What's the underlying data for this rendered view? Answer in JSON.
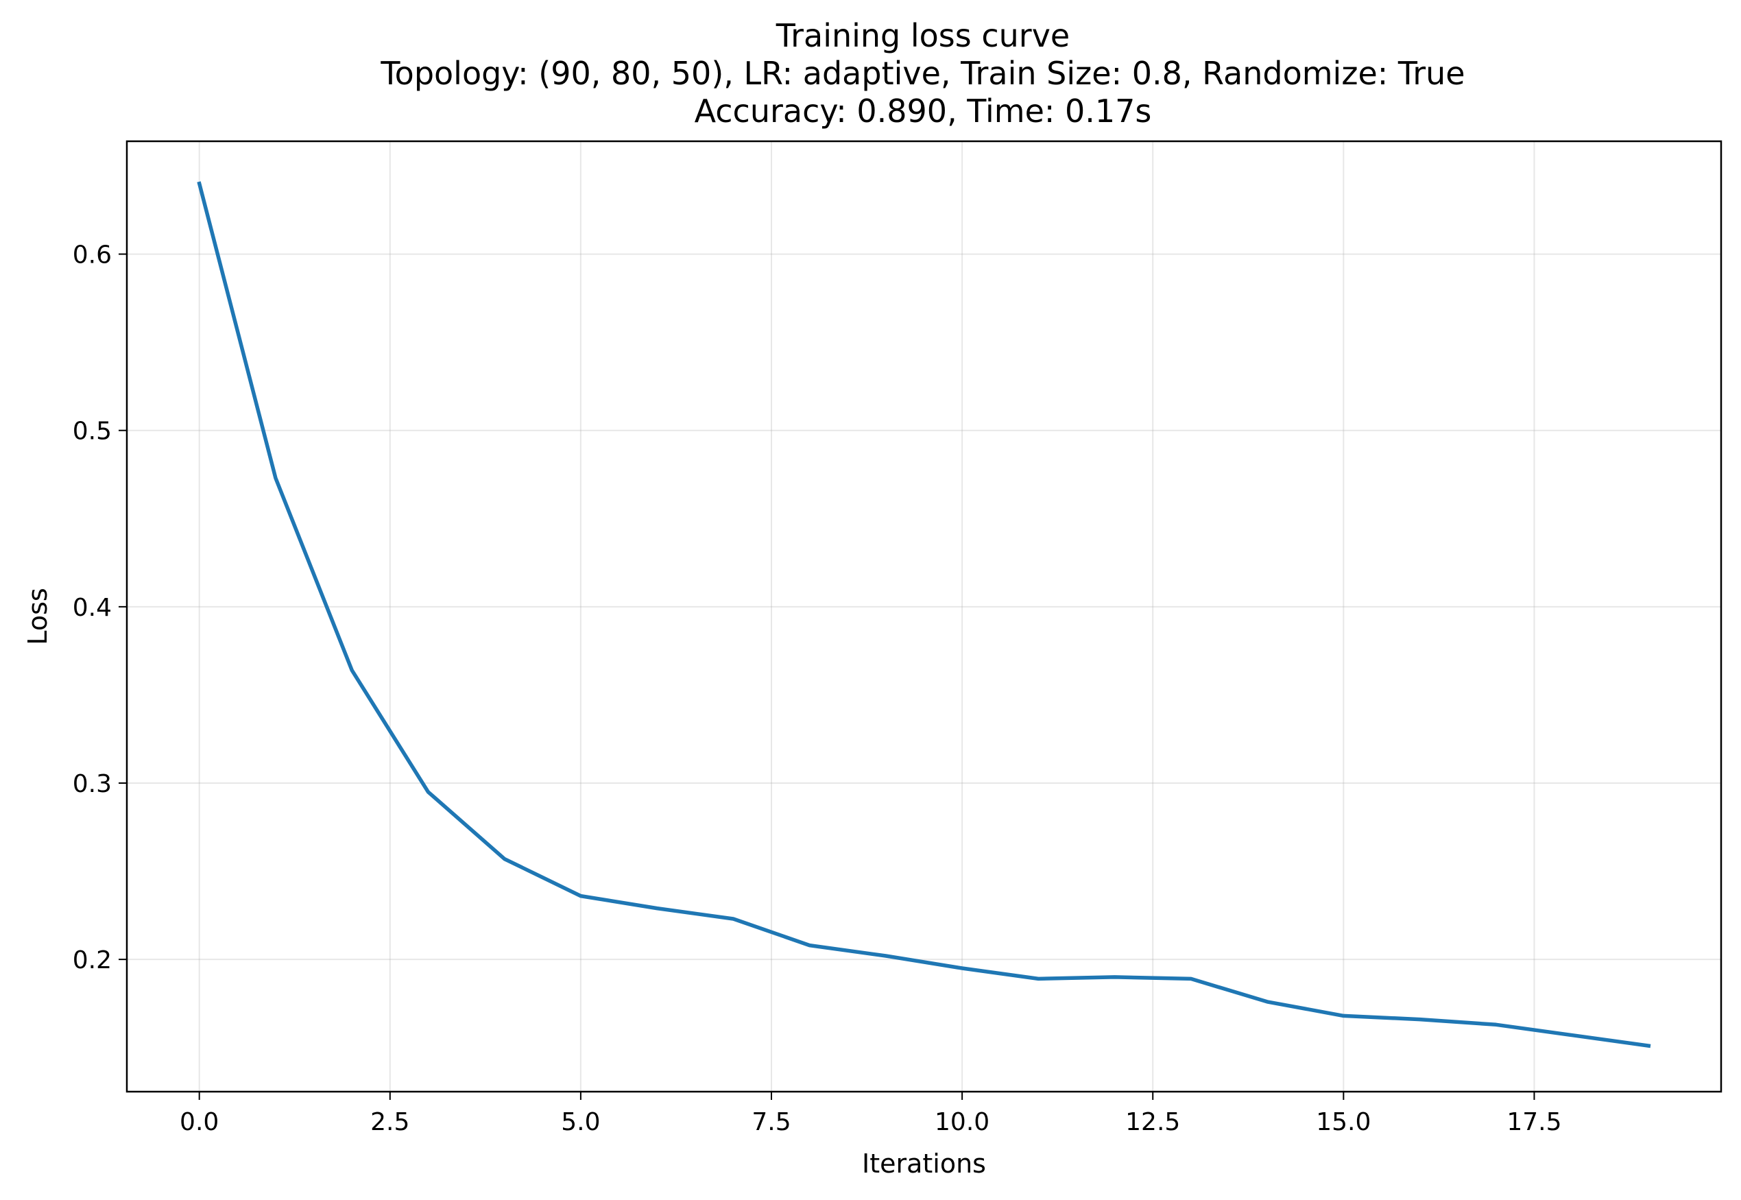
{
  "chart_data": {
    "type": "line",
    "title": "Training loss curve",
    "subtitle": [
      "Topology: (90, 80, 50), LR: adaptive, Train Size: 0.8, Randomize: True",
      "Accuracy: 0.890, Time: 0.17s"
    ],
    "xlabel": "Iterations",
    "ylabel": "Loss",
    "xlim": [
      -0.95,
      19.95
    ],
    "ylim": [
      0.125,
      0.664
    ],
    "xticks": [
      0.0,
      2.5,
      5.0,
      7.5,
      10.0,
      12.5,
      15.0,
      17.5
    ],
    "xtick_labels": [
      "0.0",
      "2.5",
      "5.0",
      "7.5",
      "10.0",
      "12.5",
      "15.0",
      "17.5"
    ],
    "yticks": [
      0.2,
      0.3,
      0.4,
      0.5,
      0.6
    ],
    "ytick_labels": [
      "0.2",
      "0.3",
      "0.4",
      "0.5",
      "0.6"
    ],
    "grid": true,
    "series": [
      {
        "color": "#1f77b4",
        "x": [
          0,
          1,
          2,
          3,
          4,
          5,
          6,
          7,
          8,
          9,
          10,
          11,
          12,
          13,
          14,
          15,
          16,
          17,
          18,
          19
        ],
        "y": [
          0.64,
          0.473,
          0.364,
          0.295,
          0.257,
          0.236,
          0.229,
          0.223,
          0.208,
          0.202,
          0.195,
          0.189,
          0.19,
          0.189,
          0.176,
          0.168,
          0.166,
          0.163,
          0.157,
          0.151
        ]
      }
    ]
  }
}
